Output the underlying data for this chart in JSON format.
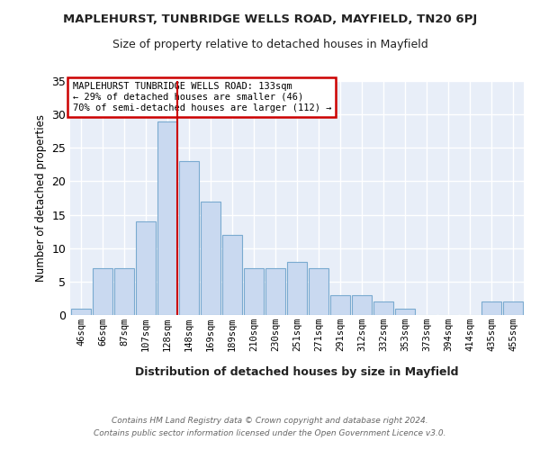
{
  "title": "MAPLEHURST, TUNBRIDGE WELLS ROAD, MAYFIELD, TN20 6PJ",
  "subtitle": "Size of property relative to detached houses in Mayfield",
  "xlabel": "Distribution of detached houses by size in Mayfield",
  "ylabel": "Number of detached properties",
  "categories": [
    "46sqm",
    "66sqm",
    "87sqm",
    "107sqm",
    "128sqm",
    "148sqm",
    "169sqm",
    "189sqm",
    "210sqm",
    "230sqm",
    "251sqm",
    "271sqm",
    "291sqm",
    "312sqm",
    "332sqm",
    "353sqm",
    "373sqm",
    "394sqm",
    "414sqm",
    "435sqm",
    "455sqm"
  ],
  "values": [
    1,
    7,
    7,
    14,
    29,
    23,
    17,
    12,
    7,
    7,
    8,
    7,
    3,
    3,
    2,
    1,
    0,
    0,
    0,
    2,
    2
  ],
  "bar_color": "#c9d9f0",
  "bar_edge_color": "#7aaad0",
  "background_color": "#e8eef8",
  "grid_color": "#ffffff",
  "red_line_x": 4.47,
  "legend_title": "MAPLEHURST TUNBRIDGE WELLS ROAD: 133sqm",
  "legend_line1": "← 29% of detached houses are smaller (46)",
  "legend_line2": "70% of semi-detached houses are larger (112) →",
  "legend_box_color": "#ffffff",
  "legend_box_edge_color": "#cc0000",
  "red_line_color": "#cc0000",
  "footer_line1": "Contains HM Land Registry data © Crown copyright and database right 2024.",
  "footer_line2": "Contains public sector information licensed under the Open Government Licence v3.0.",
  "fig_bg_color": "#ffffff",
  "ylim": [
    0,
    35
  ],
  "yticks": [
    0,
    5,
    10,
    15,
    20,
    25,
    30,
    35
  ]
}
